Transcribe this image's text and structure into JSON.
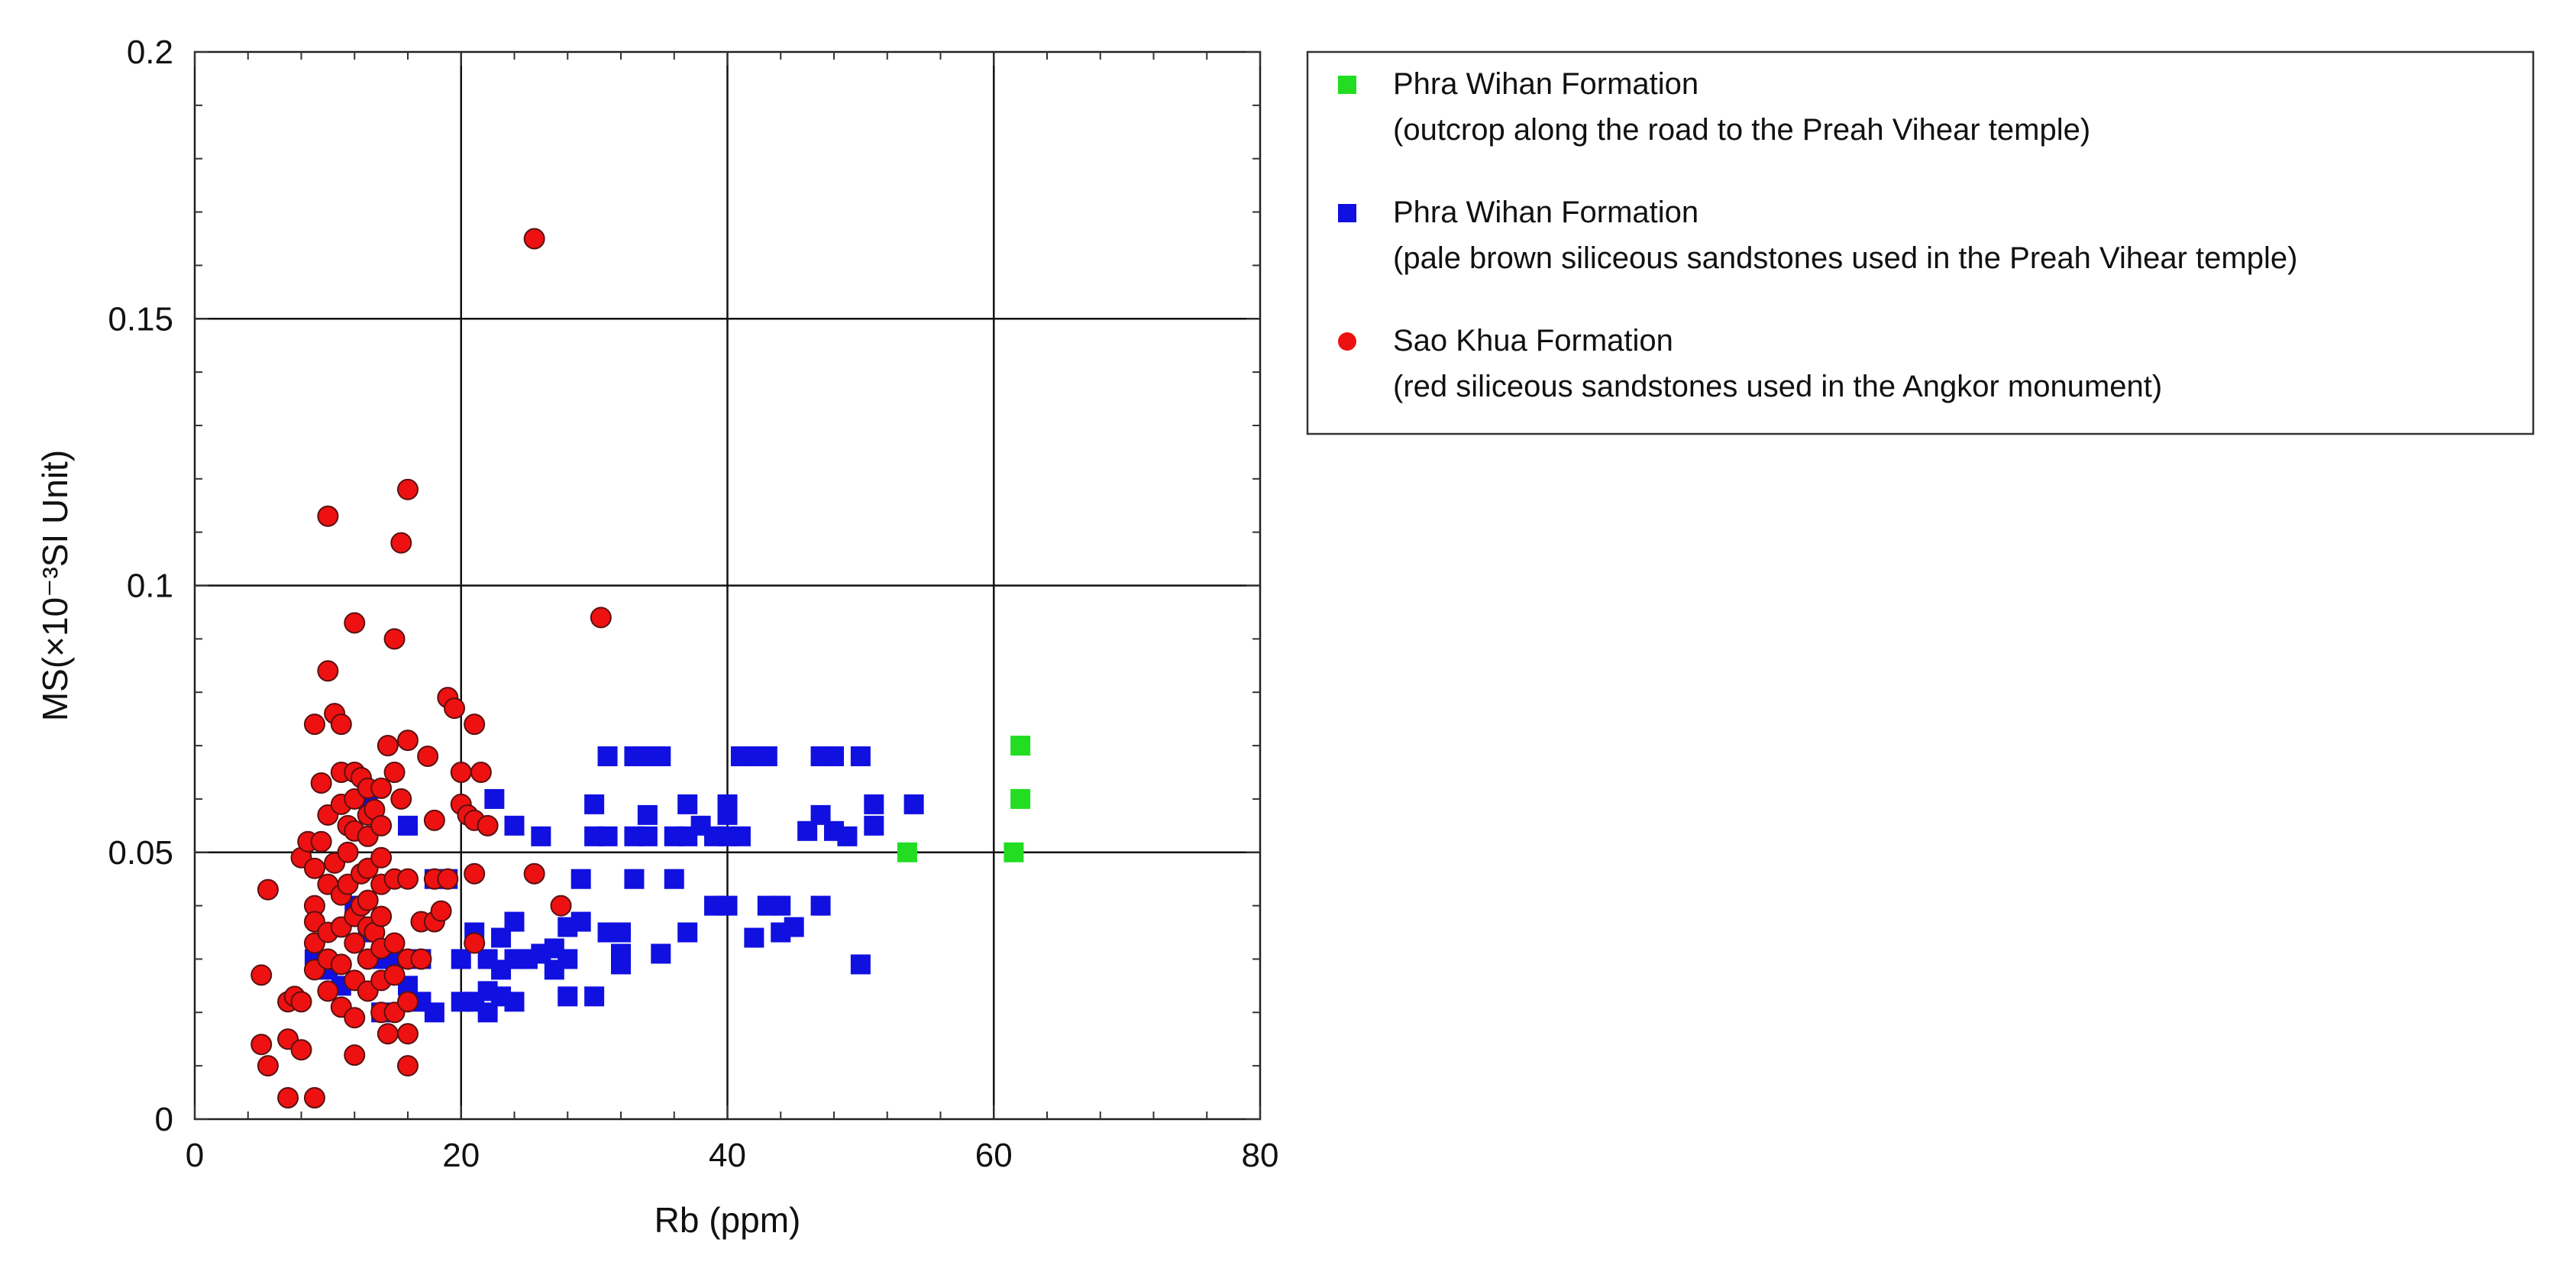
{
  "chart_data": {
    "type": "scatter",
    "xlabel": "Rb (ppm)",
    "ylabel": "MS(×10⁻³SI Unit)",
    "xlim": [
      0,
      80
    ],
    "ylim": [
      0,
      0.2
    ],
    "x_ticks": [
      "0",
      "20",
      "40",
      "60",
      "80"
    ],
    "y_ticks": [
      "0",
      "0.05",
      "0.1",
      "0.15",
      "0.2"
    ],
    "grid": true,
    "legend_position": "right-outside",
    "series": [
      {
        "name": "Phra Wihan Formation",
        "name_detail": "(outcrop along the road to the Preah Vihear temple)",
        "color": "#22dd22",
        "marker": "square",
        "points": [
          [
            53.5,
            0.05
          ],
          [
            61.5,
            0.05
          ],
          [
            62,
            0.07
          ],
          [
            62,
            0.06
          ]
        ]
      },
      {
        "name": "Phra Wihan Formation",
        "name_detail": "(pale brown siliceous sandstones used in the Preah Vihear temple)",
        "color": "#1010e0",
        "marker": "square",
        "points": [
          [
            9,
            0.03
          ],
          [
            10,
            0.028
          ],
          [
            11,
            0.025
          ],
          [
            12,
            0.04
          ],
          [
            13,
            0.06
          ],
          [
            13,
            0.035
          ],
          [
            14,
            0.02
          ],
          [
            14,
            0.03
          ],
          [
            15,
            0.03
          ],
          [
            16,
            0.025
          ],
          [
            16,
            0.055
          ],
          [
            17,
            0.022
          ],
          [
            17,
            0.03
          ],
          [
            18,
            0.045
          ],
          [
            18,
            0.02
          ],
          [
            19,
            0.045
          ],
          [
            20,
            0.03
          ],
          [
            20,
            0.022
          ],
          [
            21,
            0.035
          ],
          [
            21,
            0.022
          ],
          [
            22,
            0.02
          ],
          [
            22,
            0.03
          ],
          [
            22,
            0.024
          ],
          [
            22.5,
            0.06
          ],
          [
            23,
            0.023
          ],
          [
            23,
            0.028
          ],
          [
            23,
            0.034
          ],
          [
            24,
            0.03
          ],
          [
            24,
            0.037
          ],
          [
            24,
            0.022
          ],
          [
            24,
            0.055
          ],
          [
            25,
            0.03
          ],
          [
            26,
            0.031
          ],
          [
            26,
            0.053
          ],
          [
            27,
            0.032
          ],
          [
            27,
            0.028
          ],
          [
            28,
            0.036
          ],
          [
            28,
            0.03
          ],
          [
            28,
            0.023
          ],
          [
            29,
            0.045
          ],
          [
            29,
            0.037
          ],
          [
            30,
            0.059
          ],
          [
            30,
            0.053
          ],
          [
            30,
            0.023
          ],
          [
            31,
            0.068
          ],
          [
            31,
            0.053
          ],
          [
            31,
            0.035
          ],
          [
            32,
            0.031
          ],
          [
            32,
            0.035
          ],
          [
            32,
            0.029
          ],
          [
            33,
            0.053
          ],
          [
            33,
            0.045
          ],
          [
            33,
            0.068
          ],
          [
            34,
            0.053
          ],
          [
            34,
            0.068
          ],
          [
            34,
            0.057
          ],
          [
            35,
            0.031
          ],
          [
            35,
            0.068
          ],
          [
            36,
            0.045
          ],
          [
            36,
            0.053
          ],
          [
            37,
            0.059
          ],
          [
            37,
            0.053
          ],
          [
            37,
            0.035
          ],
          [
            38,
            0.055
          ],
          [
            39,
            0.053
          ],
          [
            39,
            0.04
          ],
          [
            40,
            0.059
          ],
          [
            40,
            0.057
          ],
          [
            40,
            0.04
          ],
          [
            40,
            0.053
          ],
          [
            41,
            0.068
          ],
          [
            41,
            0.053
          ],
          [
            42,
            0.068
          ],
          [
            42,
            0.034
          ],
          [
            43,
            0.04
          ],
          [
            43,
            0.068
          ],
          [
            44,
            0.035
          ],
          [
            44,
            0.04
          ],
          [
            45,
            0.036
          ],
          [
            46,
            0.054
          ],
          [
            47,
            0.068
          ],
          [
            47,
            0.057
          ],
          [
            47,
            0.04
          ],
          [
            48,
            0.054
          ],
          [
            48,
            0.068
          ],
          [
            49,
            0.053
          ],
          [
            50,
            0.029
          ],
          [
            50,
            0.068
          ],
          [
            51,
            0.059
          ],
          [
            51,
            0.055
          ],
          [
            54,
            0.059
          ]
        ]
      },
      {
        "name": "Sao Khua Formation",
        "name_detail": "(red siliceous sandstones used in the Angkor monument)",
        "color": "#ee1111",
        "marker": "circle",
        "points": [
          [
            5,
            0.027
          ],
          [
            5,
            0.014
          ],
          [
            5.5,
            0.043
          ],
          [
            5.5,
            0.01
          ],
          [
            7,
            0.004
          ],
          [
            7,
            0.015
          ],
          [
            7,
            0.022
          ],
          [
            7.5,
            0.023
          ],
          [
            8,
            0.049
          ],
          [
            8,
            0.022
          ],
          [
            8,
            0.013
          ],
          [
            8.5,
            0.052
          ],
          [
            9,
            0.074
          ],
          [
            9,
            0.047
          ],
          [
            9,
            0.04
          ],
          [
            9,
            0.033
          ],
          [
            9,
            0.037
          ],
          [
            9,
            0.028
          ],
          [
            9,
            0.004
          ],
          [
            9.5,
            0.063
          ],
          [
            9.5,
            0.052
          ],
          [
            10,
            0.113
          ],
          [
            10,
            0.084
          ],
          [
            10,
            0.057
          ],
          [
            10,
            0.044
          ],
          [
            10,
            0.035
          ],
          [
            10,
            0.03
          ],
          [
            10,
            0.024
          ],
          [
            10.5,
            0.076
          ],
          [
            10.5,
            0.048
          ],
          [
            11,
            0.074
          ],
          [
            11,
            0.065
          ],
          [
            11,
            0.059
          ],
          [
            11,
            0.042
          ],
          [
            11,
            0.036
          ],
          [
            11,
            0.029
          ],
          [
            11,
            0.021
          ],
          [
            11.5,
            0.055
          ],
          [
            11.5,
            0.05
          ],
          [
            11.5,
            0.044
          ],
          [
            12,
            0.093
          ],
          [
            12,
            0.065
          ],
          [
            12,
            0.06
          ],
          [
            12,
            0.054
          ],
          [
            12,
            0.038
          ],
          [
            12,
            0.033
          ],
          [
            12,
            0.026
          ],
          [
            12,
            0.019
          ],
          [
            12,
            0.012
          ],
          [
            12.5,
            0.064
          ],
          [
            12.5,
            0.046
          ],
          [
            12.5,
            0.04
          ],
          [
            13,
            0.062
          ],
          [
            13,
            0.057
          ],
          [
            13,
            0.053
          ],
          [
            13,
            0.047
          ],
          [
            13,
            0.041
          ],
          [
            13,
            0.036
          ],
          [
            13,
            0.03
          ],
          [
            13,
            0.024
          ],
          [
            13.5,
            0.058
          ],
          [
            13.5,
            0.035
          ],
          [
            14,
            0.062
          ],
          [
            14,
            0.055
          ],
          [
            14,
            0.049
          ],
          [
            14,
            0.044
          ],
          [
            14,
            0.038
          ],
          [
            14,
            0.032
          ],
          [
            14,
            0.026
          ],
          [
            14,
            0.02
          ],
          [
            14.5,
            0.07
          ],
          [
            14.5,
            0.016
          ],
          [
            15,
            0.09
          ],
          [
            15,
            0.065
          ],
          [
            15,
            0.045
          ],
          [
            15,
            0.033
          ],
          [
            15,
            0.027
          ],
          [
            15,
            0.02
          ],
          [
            15.5,
            0.108
          ],
          [
            15.5,
            0.06
          ],
          [
            16,
            0.118
          ],
          [
            16,
            0.071
          ],
          [
            16,
            0.045
          ],
          [
            16,
            0.03
          ],
          [
            16,
            0.022
          ],
          [
            16,
            0.016
          ],
          [
            16,
            0.01
          ],
          [
            17,
            0.037
          ],
          [
            17,
            0.03
          ],
          [
            17.5,
            0.068
          ],
          [
            18,
            0.056
          ],
          [
            18,
            0.045
          ],
          [
            18,
            0.037
          ],
          [
            18.5,
            0.039
          ],
          [
            19,
            0.079
          ],
          [
            19,
            0.045
          ],
          [
            19.5,
            0.077
          ],
          [
            20,
            0.059
          ],
          [
            20,
            0.065
          ],
          [
            20.5,
            0.057
          ],
          [
            21,
            0.074
          ],
          [
            21,
            0.056
          ],
          [
            21,
            0.046
          ],
          [
            21,
            0.033
          ],
          [
            21.5,
            0.065
          ],
          [
            22,
            0.055
          ],
          [
            25.5,
            0.165
          ],
          [
            25.5,
            0.046
          ],
          [
            27.5,
            0.04
          ],
          [
            30.5,
            0.094
          ]
        ]
      }
    ]
  }
}
